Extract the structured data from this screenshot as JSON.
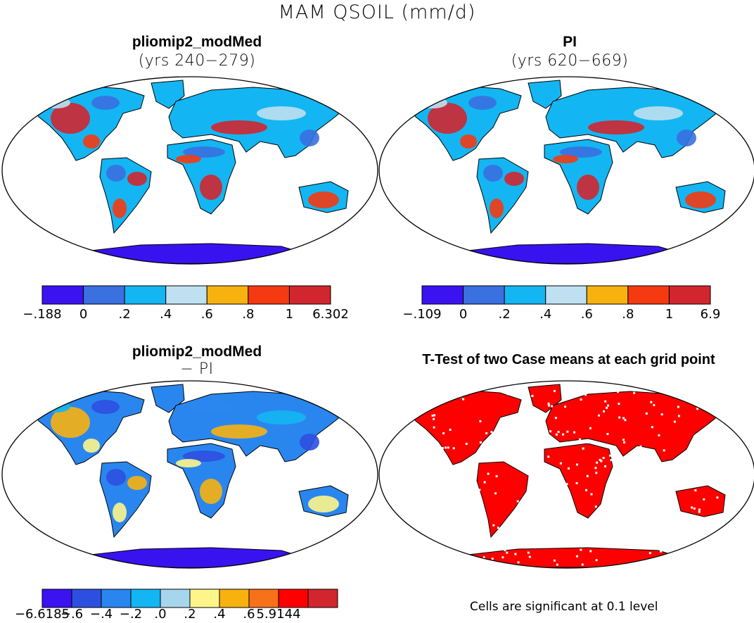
{
  "title": "MAM QSOIL (mm/d)",
  "panels": [
    {
      "id": "modmed",
      "title": "pliomip2_modMed",
      "subtitle": "(yrs 240−279)",
      "palette": [
        "#3a13f0",
        "#3a70e0",
        "#13b6f2",
        "#bfe0f0",
        "#f7b210",
        "#f53a12",
        "#d2262f"
      ],
      "colorbar_labels": [
        "−.188",
        "0",
        ".2",
        ".4",
        ".6",
        ".8",
        "1",
        "6.302"
      ]
    },
    {
      "id": "pi",
      "title": "PI",
      "subtitle": "(yrs 620−669)",
      "palette": [
        "#3a13f0",
        "#3a70e0",
        "#13b6f2",
        "#bfe0f0",
        "#f7b210",
        "#f53a12",
        "#d2262f"
      ],
      "colorbar_labels": [
        "−.109",
        "0",
        ".2",
        ".4",
        ".6",
        ".8",
        "1",
        "6.9"
      ]
    },
    {
      "id": "diff",
      "title": "pliomip2_modMed",
      "subtitle": "− PI",
      "palette": [
        "#3a13f0",
        "#2d4fe0",
        "#2a86ef",
        "#13b6f2",
        "#a6d6ee",
        "#fdf58a",
        "#f7b210",
        "#f6711a",
        "#fe0000",
        "#d2262f"
      ],
      "colorbar_labels": [
        "−6.6185",
        "−.6",
        "−.4",
        "−.2",
        ".0",
        ".2",
        ".4",
        ".6",
        "5.9144"
      ]
    },
    {
      "id": "ttest",
      "title": "T-Test of two Case means at each grid point",
      "note": "Cells are significant at 0.1 level",
      "color": "#fe0000"
    }
  ]
}
